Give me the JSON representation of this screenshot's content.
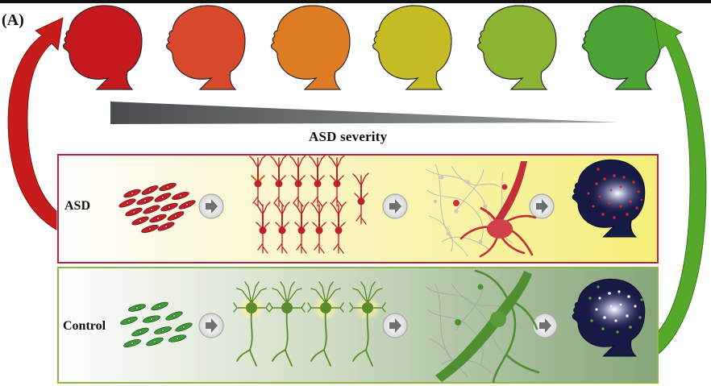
{
  "labels": {
    "panel": "(A)",
    "severity": "ASD severity",
    "asd_row": "ASD",
    "control_row": "Control"
  },
  "colors": {
    "severity_heads": [
      "#c4191f",
      "#d8482a",
      "#dd7c22",
      "#c5bb24",
      "#8cb433",
      "#4ca232"
    ],
    "asd_accent": "#c0203b",
    "control_accent": "#8cb840",
    "asd_arrow": "#c61c1c",
    "control_arrow": "#56a82a",
    "brain_background": "#171a45",
    "asd_neuron": "#c0202a",
    "control_neuron": "#5a8c2a"
  },
  "icons": [
    "baby-head-icon",
    "cell-cluster-icon",
    "chevron-arrow-icon",
    "neuron-icon",
    "network-icon",
    "brain-head-icon"
  ]
}
